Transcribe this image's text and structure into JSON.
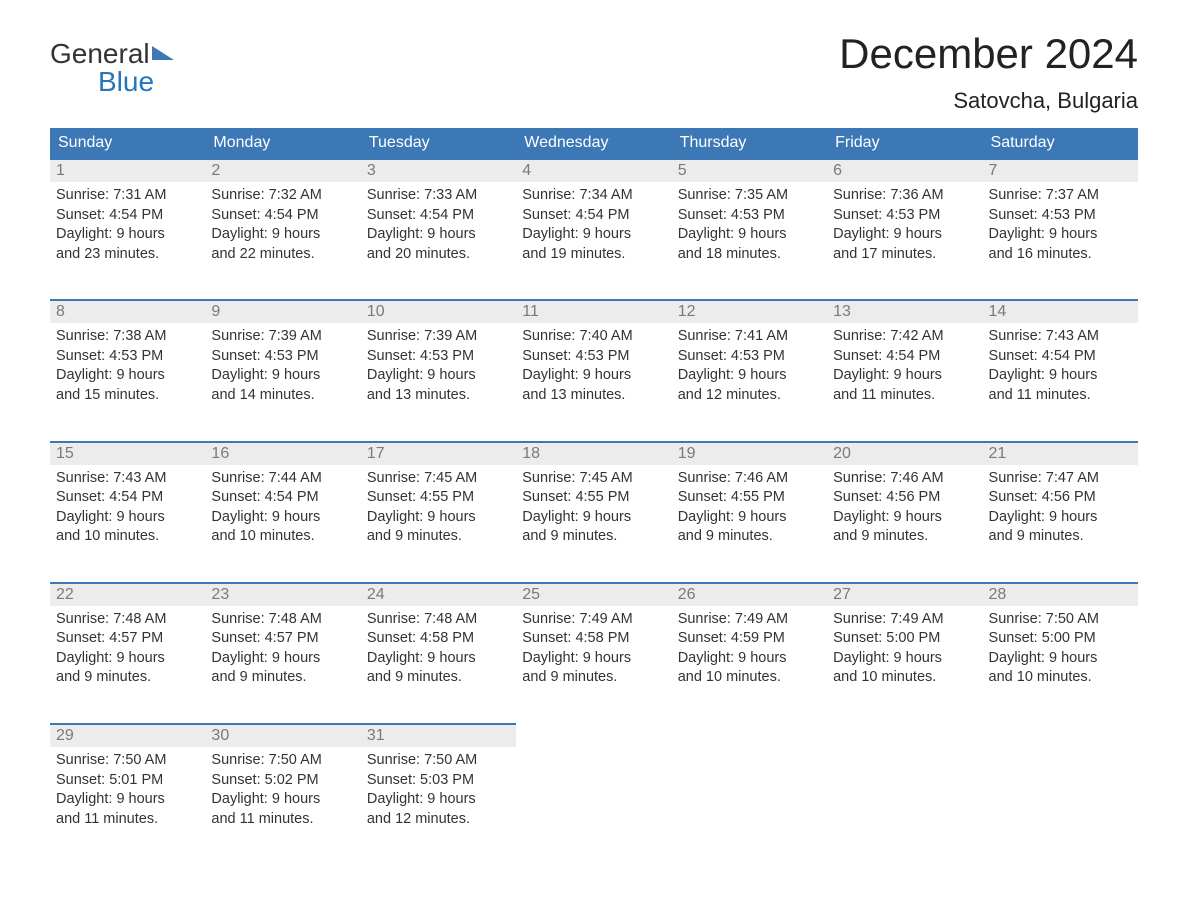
{
  "logo": {
    "word1": "General",
    "word2": "Blue"
  },
  "title": "December 2024",
  "location": "Satovcha, Bulgaria",
  "header_color": "#3b78b5",
  "daynum_bg": "#ececec",
  "daynum_color": "#7a7a7a",
  "text_color": "#333333",
  "days_of_week": [
    "Sunday",
    "Monday",
    "Tuesday",
    "Wednesday",
    "Thursday",
    "Friday",
    "Saturday"
  ],
  "weeks": [
    [
      {
        "n": "1",
        "sunrise": "7:31 AM",
        "sunset": "4:54 PM",
        "dl1": "Daylight: 9 hours",
        "dl2": "and 23 minutes."
      },
      {
        "n": "2",
        "sunrise": "7:32 AM",
        "sunset": "4:54 PM",
        "dl1": "Daylight: 9 hours",
        "dl2": "and 22 minutes."
      },
      {
        "n": "3",
        "sunrise": "7:33 AM",
        "sunset": "4:54 PM",
        "dl1": "Daylight: 9 hours",
        "dl2": "and 20 minutes."
      },
      {
        "n": "4",
        "sunrise": "7:34 AM",
        "sunset": "4:54 PM",
        "dl1": "Daylight: 9 hours",
        "dl2": "and 19 minutes."
      },
      {
        "n": "5",
        "sunrise": "7:35 AM",
        "sunset": "4:53 PM",
        "dl1": "Daylight: 9 hours",
        "dl2": "and 18 minutes."
      },
      {
        "n": "6",
        "sunrise": "7:36 AM",
        "sunset": "4:53 PM",
        "dl1": "Daylight: 9 hours",
        "dl2": "and 17 minutes."
      },
      {
        "n": "7",
        "sunrise": "7:37 AM",
        "sunset": "4:53 PM",
        "dl1": "Daylight: 9 hours",
        "dl2": "and 16 minutes."
      }
    ],
    [
      {
        "n": "8",
        "sunrise": "7:38 AM",
        "sunset": "4:53 PM",
        "dl1": "Daylight: 9 hours",
        "dl2": "and 15 minutes."
      },
      {
        "n": "9",
        "sunrise": "7:39 AM",
        "sunset": "4:53 PM",
        "dl1": "Daylight: 9 hours",
        "dl2": "and 14 minutes."
      },
      {
        "n": "10",
        "sunrise": "7:39 AM",
        "sunset": "4:53 PM",
        "dl1": "Daylight: 9 hours",
        "dl2": "and 13 minutes."
      },
      {
        "n": "11",
        "sunrise": "7:40 AM",
        "sunset": "4:53 PM",
        "dl1": "Daylight: 9 hours",
        "dl2": "and 13 minutes."
      },
      {
        "n": "12",
        "sunrise": "7:41 AM",
        "sunset": "4:53 PM",
        "dl1": "Daylight: 9 hours",
        "dl2": "and 12 minutes."
      },
      {
        "n": "13",
        "sunrise": "7:42 AM",
        "sunset": "4:54 PM",
        "dl1": "Daylight: 9 hours",
        "dl2": "and 11 minutes."
      },
      {
        "n": "14",
        "sunrise": "7:43 AM",
        "sunset": "4:54 PM",
        "dl1": "Daylight: 9 hours",
        "dl2": "and 11 minutes."
      }
    ],
    [
      {
        "n": "15",
        "sunrise": "7:43 AM",
        "sunset": "4:54 PM",
        "dl1": "Daylight: 9 hours",
        "dl2": "and 10 minutes."
      },
      {
        "n": "16",
        "sunrise": "7:44 AM",
        "sunset": "4:54 PM",
        "dl1": "Daylight: 9 hours",
        "dl2": "and 10 minutes."
      },
      {
        "n": "17",
        "sunrise": "7:45 AM",
        "sunset": "4:55 PM",
        "dl1": "Daylight: 9 hours",
        "dl2": "and 9 minutes."
      },
      {
        "n": "18",
        "sunrise": "7:45 AM",
        "sunset": "4:55 PM",
        "dl1": "Daylight: 9 hours",
        "dl2": "and 9 minutes."
      },
      {
        "n": "19",
        "sunrise": "7:46 AM",
        "sunset": "4:55 PM",
        "dl1": "Daylight: 9 hours",
        "dl2": "and 9 minutes."
      },
      {
        "n": "20",
        "sunrise": "7:46 AM",
        "sunset": "4:56 PM",
        "dl1": "Daylight: 9 hours",
        "dl2": "and 9 minutes."
      },
      {
        "n": "21",
        "sunrise": "7:47 AM",
        "sunset": "4:56 PM",
        "dl1": "Daylight: 9 hours",
        "dl2": "and 9 minutes."
      }
    ],
    [
      {
        "n": "22",
        "sunrise": "7:48 AM",
        "sunset": "4:57 PM",
        "dl1": "Daylight: 9 hours",
        "dl2": "and 9 minutes."
      },
      {
        "n": "23",
        "sunrise": "7:48 AM",
        "sunset": "4:57 PM",
        "dl1": "Daylight: 9 hours",
        "dl2": "and 9 minutes."
      },
      {
        "n": "24",
        "sunrise": "7:48 AM",
        "sunset": "4:58 PM",
        "dl1": "Daylight: 9 hours",
        "dl2": "and 9 minutes."
      },
      {
        "n": "25",
        "sunrise": "7:49 AM",
        "sunset": "4:58 PM",
        "dl1": "Daylight: 9 hours",
        "dl2": "and 9 minutes."
      },
      {
        "n": "26",
        "sunrise": "7:49 AM",
        "sunset": "4:59 PM",
        "dl1": "Daylight: 9 hours",
        "dl2": "and 10 minutes."
      },
      {
        "n": "27",
        "sunrise": "7:49 AM",
        "sunset": "5:00 PM",
        "dl1": "Daylight: 9 hours",
        "dl2": "and 10 minutes."
      },
      {
        "n": "28",
        "sunrise": "7:50 AM",
        "sunset": "5:00 PM",
        "dl1": "Daylight: 9 hours",
        "dl2": "and 10 minutes."
      }
    ],
    [
      {
        "n": "29",
        "sunrise": "7:50 AM",
        "sunset": "5:01 PM",
        "dl1": "Daylight: 9 hours",
        "dl2": "and 11 minutes."
      },
      {
        "n": "30",
        "sunrise": "7:50 AM",
        "sunset": "5:02 PM",
        "dl1": "Daylight: 9 hours",
        "dl2": "and 11 minutes."
      },
      {
        "n": "31",
        "sunrise": "7:50 AM",
        "sunset": "5:03 PM",
        "dl1": "Daylight: 9 hours",
        "dl2": "and 12 minutes."
      },
      null,
      null,
      null,
      null
    ]
  ],
  "labels": {
    "sunrise_prefix": "Sunrise: ",
    "sunset_prefix": "Sunset: "
  }
}
